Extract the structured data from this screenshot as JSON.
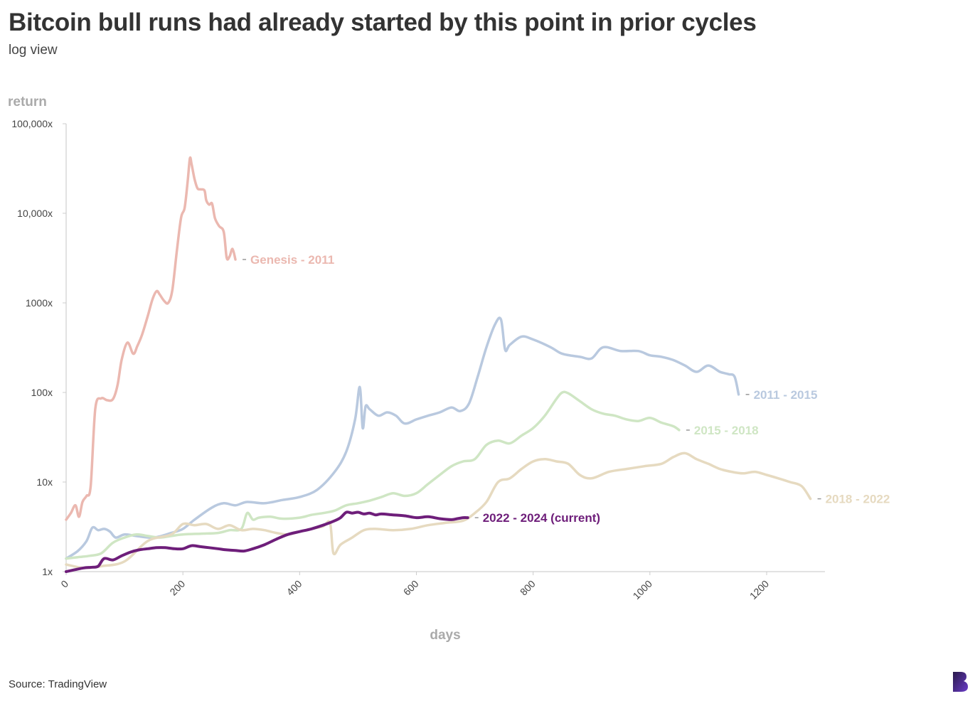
{
  "header": {
    "title": "Bitcoin bull runs had already started by this point in prior cycles",
    "subtitle": "log view"
  },
  "footer": {
    "source": "Source: TradingView"
  },
  "chart_data": {
    "type": "line",
    "title": "Bitcoin bull runs had already started by this point in prior cycles",
    "subtitle": "log view",
    "xlabel": "days",
    "ylabel": "return",
    "x_scale": "linear",
    "y_scale": "log",
    "xlim": [
      0,
      1300
    ],
    "ylim": [
      1,
      100000
    ],
    "x_ticks": [
      0,
      200,
      400,
      600,
      800,
      1000,
      1200
    ],
    "y_ticks": [
      {
        "value": 1,
        "label": "1x"
      },
      {
        "value": 10,
        "label": "10x"
      },
      {
        "value": 100,
        "label": "100x"
      },
      {
        "value": 1000,
        "label": "1000x"
      },
      {
        "value": 10000,
        "label": "10,000x"
      },
      {
        "value": 100000,
        "label": "100,000x"
      }
    ],
    "grid": false,
    "legend": "direct labels at line ends",
    "series": [
      {
        "name": "Genesis - 2011",
        "color": "#ebb8b0",
        "x": [
          0,
          8,
          16,
          22,
          28,
          35,
          42,
          50,
          60,
          70,
          80,
          88,
          95,
          105,
          115,
          122,
          130,
          140,
          148,
          155,
          160,
          168,
          175,
          182,
          190,
          197,
          203,
          208,
          212,
          215,
          220,
          225,
          230,
          237,
          240,
          245,
          250,
          255,
          262,
          270,
          275,
          280,
          285,
          290
        ],
        "y": [
          3.8,
          4.5,
          5.5,
          4.1,
          6,
          7,
          9,
          66,
          86,
          82,
          84,
          120,
          230,
          360,
          270,
          330,
          440,
          720,
          1100,
          1350,
          1250,
          1050,
          1000,
          1400,
          4000,
          9000,
          11500,
          22000,
          41000,
          35000,
          24000,
          19000,
          18500,
          18000,
          14000,
          12500,
          12800,
          8800,
          7200,
          6200,
          3200,
          3300,
          4000,
          3050
        ]
      },
      {
        "name": "2011 - 2015",
        "color": "#b9c9df",
        "x": [
          0,
          20,
          35,
          45,
          55,
          65,
          75,
          85,
          100,
          120,
          150,
          180,
          200,
          220,
          250,
          270,
          290,
          310,
          340,
          370,
          400,
          430,
          460,
          480,
          495,
          503,
          508,
          513,
          520,
          535,
          550,
          565,
          580,
          600,
          620,
          640,
          660,
          675,
          690,
          705,
          720,
          735,
          745,
          752,
          760,
          780,
          800,
          830,
          850,
          880,
          900,
          920,
          950,
          980,
          1000,
          1020,
          1040,
          1060,
          1080,
          1100,
          1120,
          1135,
          1145,
          1152
        ],
        "y": [
          1.4,
          1.7,
          2.2,
          3.1,
          2.9,
          3.0,
          2.8,
          2.4,
          2.6,
          2.5,
          2.4,
          2.7,
          3.0,
          3.8,
          5.2,
          5.8,
          5.5,
          6.0,
          5.8,
          6.3,
          6.8,
          8.2,
          13,
          22,
          50,
          115,
          40,
          70,
          65,
          55,
          60,
          55,
          45,
          50,
          55,
          60,
          68,
          62,
          75,
          150,
          320,
          580,
          650,
          300,
          340,
          420,
          390,
          320,
          270,
          250,
          240,
          320,
          290,
          290,
          260,
          250,
          230,
          200,
          170,
          200,
          170,
          160,
          150,
          95
        ]
      },
      {
        "name": "2015 - 2018",
        "color": "#cfe6c4",
        "x": [
          0,
          20,
          40,
          60,
          80,
          100,
          120,
          140,
          160,
          180,
          200,
          230,
          260,
          280,
          300,
          310,
          320,
          330,
          350,
          370,
          400,
          420,
          440,
          460,
          480,
          500,
          520,
          540,
          560,
          580,
          600,
          620,
          640,
          660,
          680,
          700,
          720,
          740,
          760,
          780,
          800,
          820,
          840,
          850,
          860,
          880,
          900,
          920,
          940,
          960,
          980,
          1000,
          1020,
          1040,
          1050
        ],
        "y": [
          1.4,
          1.45,
          1.5,
          1.6,
          2.1,
          2.4,
          2.6,
          2.5,
          2.4,
          2.5,
          2.6,
          2.65,
          2.7,
          2.9,
          3.0,
          4.5,
          3.8,
          4.0,
          4.1,
          3.9,
          4.0,
          4.3,
          4.5,
          4.8,
          5.5,
          5.8,
          6.2,
          6.8,
          7.5,
          7.0,
          7.5,
          9.5,
          12,
          15,
          17,
          18,
          26,
          29,
          27,
          33,
          40,
          55,
          85,
          100,
          98,
          80,
          65,
          58,
          55,
          50,
          48,
          52,
          46,
          42,
          38
        ]
      },
      {
        "name": "2018 - 2022",
        "color": "#e6dac0",
        "x": [
          0,
          30,
          60,
          100,
          140,
          180,
          200,
          220,
          240,
          260,
          280,
          300,
          320,
          340,
          360,
          380,
          400,
          420,
          440,
          452,
          458,
          470,
          490,
          510,
          530,
          560,
          590,
          620,
          650,
          680,
          700,
          720,
          740,
          760,
          780,
          800,
          820,
          840,
          860,
          880,
          900,
          930,
          960,
          990,
          1020,
          1040,
          1060,
          1080,
          1100,
          1120,
          1140,
          1160,
          1180,
          1200,
          1220,
          1240,
          1260,
          1275
        ],
        "y": [
          1.2,
          1.1,
          1.15,
          1.3,
          2.2,
          2.6,
          3.4,
          3.3,
          3.4,
          3.0,
          3.3,
          2.9,
          3.0,
          2.9,
          2.7,
          2.6,
          2.8,
          3.0,
          3.2,
          3.5,
          1.6,
          2.0,
          2.4,
          2.9,
          3.0,
          2.9,
          3.0,
          3.3,
          3.5,
          3.7,
          4.5,
          6.0,
          10,
          11,
          14,
          17,
          18,
          17,
          16,
          12,
          11,
          13,
          14,
          15,
          16,
          19,
          21,
          18,
          16,
          14,
          13,
          12.5,
          13,
          12,
          11,
          10,
          9,
          6.5
        ]
      },
      {
        "name": "2022 - 2024 (current)",
        "color": "#6e1e7a",
        "x": [
          0,
          15,
          30,
          45,
          55,
          65,
          80,
          95,
          110,
          125,
          140,
          155,
          170,
          185,
          200,
          215,
          230,
          245,
          260,
          275,
          290,
          305,
          320,
          340,
          360,
          380,
          400,
          420,
          440,
          460,
          470,
          480,
          490,
          500,
          510,
          520,
          530,
          540,
          560,
          580,
          600,
          620,
          640,
          660,
          670,
          680,
          688
        ],
        "y": [
          1.0,
          1.05,
          1.1,
          1.12,
          1.15,
          1.4,
          1.35,
          1.5,
          1.65,
          1.75,
          1.8,
          1.85,
          1.85,
          1.8,
          1.8,
          1.95,
          1.9,
          1.85,
          1.8,
          1.75,
          1.72,
          1.7,
          1.8,
          2.0,
          2.3,
          2.6,
          2.8,
          3.0,
          3.3,
          3.7,
          4.0,
          4.6,
          4.5,
          4.6,
          4.4,
          4.5,
          4.3,
          4.4,
          4.3,
          4.2,
          4.0,
          4.1,
          3.9,
          3.8,
          3.9,
          4.0,
          4.0
        ]
      }
    ]
  }
}
